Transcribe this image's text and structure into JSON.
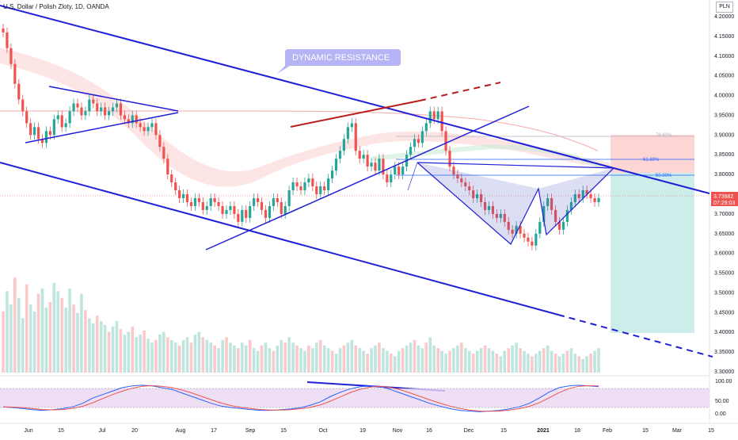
{
  "header": {
    "title": "U.S. Dollar / Polish Zloty, 1D, OANDA",
    "currency": "PLN"
  },
  "callout": {
    "text": "DYNAMIC RESISTANCE"
  },
  "price_axis": {
    "ticks": [
      "4.20000",
      "4.15000",
      "4.10000",
      "4.05000",
      "4.00000",
      "3.95000",
      "3.90000",
      "3.85000",
      "3.80000",
      "3.75000",
      "3.70000",
      "3.65000",
      "3.60000",
      "3.55000",
      "3.50000",
      "3.45000",
      "3.40000",
      "3.35000",
      "3.30000"
    ]
  },
  "last_price": {
    "value": "3.73982",
    "countdown": "07:29:03"
  },
  "oscillator_axis": {
    "ticks": [
      "100.00",
      "50.00",
      "0.00"
    ]
  },
  "time_axis": {
    "labels": [
      "Jun",
      "15",
      "Jul",
      "20",
      "Aug",
      "17",
      "Sep",
      "15",
      "Oct",
      "19",
      "Nov",
      "16",
      "Dec",
      "15",
      "2021",
      "18",
      "Feb",
      "15",
      "Mar",
      "15"
    ]
  },
  "fib_levels": [
    {
      "label": "78.60%",
      "color": "#b2b5be"
    },
    {
      "label": "61.80%",
      "color": "#2962ff"
    },
    {
      "label": "50.00%",
      "color": "#2962ff"
    }
  ],
  "colors": {
    "up": "#26a69a",
    "down": "#ef5350",
    "line": "#1f1fd6",
    "trend_red": "#b71c1c",
    "stoch_k": "#2962ff",
    "stoch_d": "#ef5350",
    "stoch_band": "#e1bee7",
    "risk": "#fccbcb",
    "reward": "#bfe9e4"
  },
  "chart_data": {
    "type": "candlestick",
    "title": "U.S. Dollar / Polish Zloty, 1D, OANDA",
    "ylim": [
      3.3,
      4.22
    ],
    "close": [
      4.16,
      4.12,
      4.08,
      4.03,
      3.99,
      3.96,
      3.93,
      3.9,
      3.92,
      3.89,
      3.88,
      3.91,
      3.9,
      3.94,
      3.95,
      3.92,
      3.93,
      3.96,
      3.98,
      3.97,
      3.95,
      3.96,
      3.99,
      3.98,
      3.96,
      3.97,
      3.95,
      3.96,
      3.97,
      3.98,
      3.95,
      3.94,
      3.93,
      3.95,
      3.93,
      3.92,
      3.91,
      3.92,
      3.93,
      3.9,
      3.87,
      3.84,
      3.8,
      3.78,
      3.76,
      3.74,
      3.75,
      3.73,
      3.72,
      3.74,
      3.73,
      3.71,
      3.72,
      3.74,
      3.73,
      3.72,
      3.7,
      3.71,
      3.72,
      3.7,
      3.68,
      3.71,
      3.69,
      3.72,
      3.74,
      3.73,
      3.71,
      3.69,
      3.72,
      3.74,
      3.73,
      3.7,
      3.72,
      3.76,
      3.78,
      3.77,
      3.76,
      3.78,
      3.79,
      3.77,
      3.75,
      3.77,
      3.76,
      3.79,
      3.81,
      3.84,
      3.86,
      3.89,
      3.92,
      3.93,
      3.86,
      3.84,
      3.85,
      3.82,
      3.83,
      3.81,
      3.84,
      3.8,
      3.78,
      3.8,
      3.82,
      3.8,
      3.82,
      3.85,
      3.87,
      3.89,
      3.88,
      3.91,
      3.93,
      3.96,
      3.94,
      3.96,
      3.91,
      3.86,
      3.82,
      3.8,
      3.79,
      3.78,
      3.77,
      3.76,
      3.74,
      3.75,
      3.73,
      3.71,
      3.72,
      3.7,
      3.69,
      3.7,
      3.68,
      3.66,
      3.65,
      3.67,
      3.65,
      3.64,
      3.63,
      3.62,
      3.65,
      3.68,
      3.72,
      3.74,
      3.71,
      3.68,
      3.66,
      3.68,
      3.71,
      3.73,
      3.75,
      3.74,
      3.76,
      3.75,
      3.74,
      3.73,
      3.74
    ],
    "oscillator": {
      "k": [
        20,
        18,
        15,
        12,
        10,
        12,
        15,
        20,
        30,
        45,
        55,
        65,
        75,
        80,
        82,
        80,
        75,
        70,
        60,
        50,
        40,
        30,
        22,
        18,
        15,
        12,
        10,
        10,
        12,
        14,
        18,
        25,
        35,
        50,
        62,
        72,
        78,
        80,
        78,
        70,
        60,
        50,
        40,
        30,
        22,
        15,
        10,
        8,
        6,
        8,
        10,
        14,
        20,
        30,
        45,
        62,
        75,
        80,
        82,
        80,
        78
      ]
    },
    "volume": [
      45,
      60,
      50,
      70,
      55,
      40,
      65,
      50,
      45,
      58,
      62,
      48,
      52,
      66,
      60,
      55,
      48,
      62,
      50,
      44,
      58,
      46,
      40,
      36,
      42,
      38,
      35,
      30,
      34,
      38,
      32,
      28,
      30,
      34,
      26,
      28,
      31,
      25,
      22,
      24,
      28,
      30,
      26,
      24,
      22,
      20,
      24,
      26,
      22,
      28,
      30,
      26,
      24,
      22,
      20,
      18,
      24,
      26,
      22,
      20,
      18,
      22,
      20,
      24,
      18,
      16,
      20,
      22,
      18,
      16,
      20,
      24,
      22,
      26,
      22,
      20,
      18,
      16,
      20,
      18,
      22,
      24,
      20,
      18,
      16,
      14,
      18,
      20,
      22,
      24,
      20,
      18,
      16,
      14,
      18,
      20,
      22,
      18,
      16,
      14,
      12,
      16,
      18,
      20,
      22,
      24,
      20,
      18,
      22,
      26,
      20,
      18,
      16,
      14,
      16,
      18,
      20,
      22,
      18,
      16,
      14,
      16,
      18,
      20,
      18,
      16,
      14,
      12,
      16,
      18,
      20,
      22,
      18,
      16,
      14,
      12,
      14,
      16,
      18,
      20,
      16,
      14,
      12,
      14,
      16,
      18,
      14,
      12,
      10,
      12,
      14,
      16,
      18
    ]
  }
}
